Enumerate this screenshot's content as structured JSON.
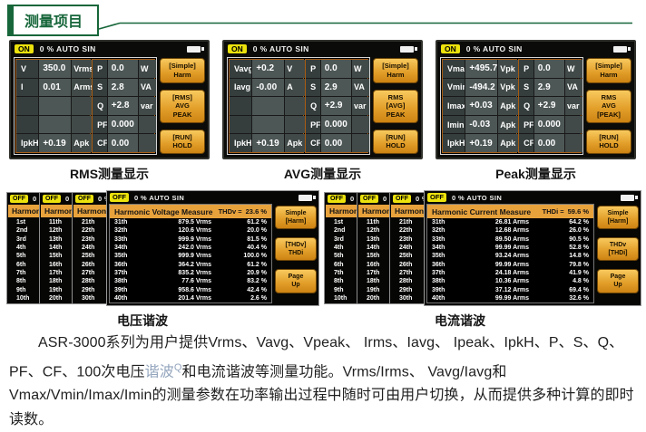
{
  "page": {
    "section_title": "测量项目"
  },
  "colors": {
    "accent_green": "#17663a",
    "device_orange": "#e8a23c",
    "badge_yellow": "#ece20c",
    "link_blue": "#93a5bd"
  },
  "top_screens": [
    {
      "id": "rms",
      "caption": "RMS测量显示",
      "status_badge": "ON",
      "status_text": "0 % AUTO SIN",
      "left_rows": [
        [
          "V",
          "350.0",
          "Vrms"
        ],
        [
          "I",
          "0.01",
          "Arms"
        ],
        [
          "",
          "",
          ""
        ],
        [
          "",
          "",
          ""
        ],
        [
          "IpkH",
          "+0.19",
          "Apk"
        ]
      ],
      "right_rows": [
        [
          "P",
          "0.0",
          "W"
        ],
        [
          "S",
          "2.8",
          "VA"
        ],
        [
          "Q",
          "+2.8",
          "var"
        ],
        [
          "PF",
          "0.000",
          ""
        ],
        [
          "CF",
          "0.00",
          ""
        ]
      ],
      "softkeys": [
        [
          "[Simple]",
          "Harm"
        ],
        [
          "[RMS]",
          "AVG",
          "PEAK"
        ],
        [
          "[RUN]",
          "HOLD"
        ]
      ]
    },
    {
      "id": "avg",
      "caption": "AVG测量显示",
      "status_badge": "ON",
      "status_text": "0 % AUTO SIN",
      "left_rows": [
        [
          "Vavg",
          "+0.2",
          "V"
        ],
        [
          "Iavg",
          "-0.00",
          "A"
        ],
        [
          "",
          "",
          ""
        ],
        [
          "",
          "",
          ""
        ],
        [
          "IpkH",
          "+0.19",
          "Apk"
        ]
      ],
      "right_rows": [
        [
          "P",
          "0.0",
          "W"
        ],
        [
          "S",
          "2.9",
          "VA"
        ],
        [
          "Q",
          "+2.9",
          "var"
        ],
        [
          "PF",
          "0.000",
          ""
        ],
        [
          "CF",
          "0.00",
          ""
        ]
      ],
      "softkeys": [
        [
          "[Simple]",
          "Harm"
        ],
        [
          "RMS",
          "[AVG]",
          "PEAK"
        ],
        [
          "[RUN]",
          "HOLD"
        ]
      ]
    },
    {
      "id": "peak",
      "caption": "Peak测量显示",
      "status_badge": "ON",
      "status_text": "0 % AUTO SIN",
      "left_rows": [
        [
          "Vmax",
          "+495.7",
          "Vpk"
        ],
        [
          "Vmin",
          "-494.2",
          "Vpk"
        ],
        [
          "Imax",
          "+0.03",
          "Apk"
        ],
        [
          "Imin",
          "-0.03",
          "Apk"
        ],
        [
          "IpkH",
          "+0.19",
          "Apk"
        ]
      ],
      "right_rows": [
        [
          "P",
          "0.0",
          "W"
        ],
        [
          "S",
          "2.9",
          "VA"
        ],
        [
          "Q",
          "+2.9",
          "var"
        ],
        [
          "PF",
          "0.000",
          ""
        ],
        [
          "CF",
          "0.00",
          ""
        ]
      ],
      "softkeys": [
        [
          "[Simple]",
          "Harm"
        ],
        [
          "RMS",
          "AVG",
          "[PEAK]"
        ],
        [
          "[RUN]",
          "HOLD"
        ]
      ]
    }
  ],
  "harmonic_screens": [
    {
      "id": "voltage",
      "caption": "电压谐波",
      "status_badge": "OFF",
      "status_text": "0 % AUTO SIN",
      "back_panels": [
        {
          "header": "Harmonic Voltage Measure",
          "rows": [
            "1st",
            "2nd",
            "3rd",
            "4th",
            "5th",
            "6th",
            "7th",
            "8th",
            "9th",
            "10th"
          ]
        },
        {
          "header": "Harmonic Voltage Measure",
          "rows": [
            "11th",
            "12th",
            "13th",
            "14th",
            "15th",
            "16th",
            "17th",
            "18th",
            "19th",
            "20th"
          ]
        },
        {
          "header": "Harmonic Voltage Measure",
          "rows": [
            "21th",
            "22th",
            "23th",
            "24th",
            "25th",
            "26th",
            "27th",
            "28th",
            "29th",
            "30th"
          ]
        }
      ],
      "title": "Harmonic Voltage Measure",
      "thd_label": "THDv =",
      "thd_value": "23.6 %",
      "rows": [
        [
          "31th",
          "879.5 Vrms",
          "61.2 %"
        ],
        [
          "32th",
          "120.6 Vrms",
          "20.0 %"
        ],
        [
          "33th",
          "999.9 Vrms",
          "81.5 %"
        ],
        [
          "34th",
          "242.0 Vrms",
          "40.4 %"
        ],
        [
          "35th",
          "999.9 Vrms",
          "100.0 %"
        ],
        [
          "36th",
          "364.2 Vrms",
          "61.2 %"
        ],
        [
          "37th",
          "835.2 Vrms",
          "20.9 %"
        ],
        [
          "38th",
          "77.6 Vrms",
          "83.2 %"
        ],
        [
          "39th",
          "958.6 Vrms",
          "42.4 %"
        ],
        [
          "40th",
          "201.4 Vrms",
          "2.6 %"
        ]
      ],
      "softkeys": [
        [
          "Simple",
          "[Harm]"
        ],
        [
          "[THDv]",
          "THDi"
        ],
        [
          "Page",
          "Up"
        ]
      ]
    },
    {
      "id": "current",
      "caption": "电流谐波",
      "status_badge": "OFF",
      "status_text": "0 % AUTO SIN",
      "back_panels": [
        {
          "header": "Harmonic Current Measure",
          "rows": [
            "1st",
            "2nd",
            "3rd",
            "4th",
            "5th",
            "6th",
            "7th",
            "8th",
            "9th",
            "10th"
          ]
        },
        {
          "header": "Harmonic Current Measure",
          "rows": [
            "11th",
            "12th",
            "13th",
            "14th",
            "15th",
            "16th",
            "17th",
            "18th",
            "19th",
            "20th"
          ]
        },
        {
          "header": "Harmonic Current Measure",
          "rows": [
            "21th",
            "22th",
            "23th",
            "24th",
            "25th",
            "26th",
            "27th",
            "28th",
            "29th",
            "30th"
          ]
        }
      ],
      "title": "Harmonic Current Measure",
      "thd_label": "THDi =",
      "thd_value": "59.6 %",
      "rows": [
        [
          "31th",
          "26.81 Arms",
          "64.2 %"
        ],
        [
          "32th",
          "12.68 Arms",
          "26.0 %"
        ],
        [
          "33th",
          "89.50 Arms",
          "90.5 %"
        ],
        [
          "34th",
          "99.99 Arms",
          "52.8 %"
        ],
        [
          "35th",
          "93.24 Arms",
          "14.8 %"
        ],
        [
          "36th",
          "99.99 Arms",
          "79.8 %"
        ],
        [
          "37th",
          "24.18 Arms",
          "41.9 %"
        ],
        [
          "38th",
          "10.36 Arms",
          "4.8 %"
        ],
        [
          "39th",
          "37.12 Arms",
          "69.4 %"
        ],
        [
          "40th",
          "99.99 Arms",
          "32.6 %"
        ]
      ],
      "softkeys": [
        [
          "Simple",
          "[Harm]"
        ],
        [
          "THDv",
          "[THDi]"
        ],
        [
          "Page",
          "Up"
        ]
      ]
    }
  ],
  "paragraph": {
    "segments": [
      {
        "style": "normal",
        "text": "ASR-3000系列为用户提供Vrms、Vavg、Vpeak、 Irms、Iavg、 Ipeak、IpkH、P、S、Q、PF、CF、100次电压"
      },
      {
        "style": "link",
        "text": "谐波"
      },
      {
        "style": "sup",
        "text": "Q"
      },
      {
        "style": "normal",
        "text": "和电流谐波等测量功能。Vrms/Irms、 Vavg/Iavg和Vmax/Vmin/Imax/Imin的测量参数在功率输出过程中随时可由用户切换，从而提供多种计算的即时读数。"
      }
    ]
  }
}
